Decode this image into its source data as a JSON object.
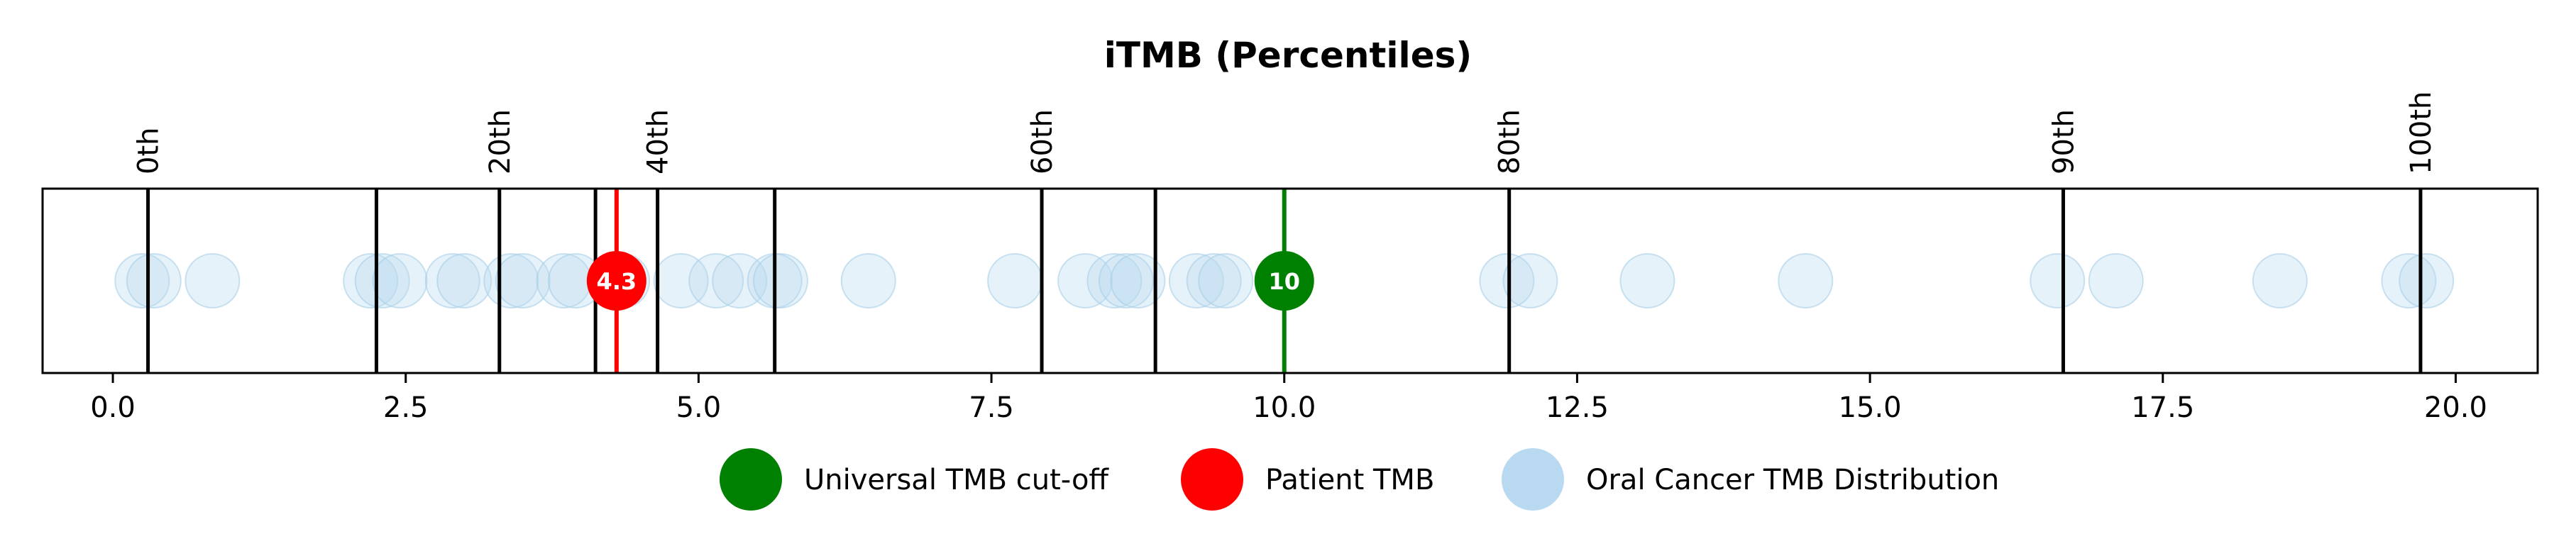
{
  "chart_data": {
    "type": "scatter",
    "title": "iTMB (Percentiles)",
    "xlabel": "",
    "ylabel": "",
    "xlim": [
      -0.6,
      20.7
    ],
    "grid": false,
    "legend_position": "bottom-center",
    "x_ticks": [
      0.0,
      2.5,
      5.0,
      7.5,
      10.0,
      12.5,
      15.0,
      17.5,
      20.0
    ],
    "x_tick_labels": [
      "0.0",
      "2.5",
      "5.0",
      "7.5",
      "10.0",
      "12.5",
      "15.0",
      "17.5",
      "20.0"
    ],
    "percentile_lines": [
      {
        "x": 0.3,
        "label": "0th"
      },
      {
        "x": 2.25,
        "label": ""
      },
      {
        "x": 3.3,
        "label": "20th"
      },
      {
        "x": 4.12,
        "label": ""
      },
      {
        "x": 4.65,
        "label": "40th"
      },
      {
        "x": 5.65,
        "label": ""
      },
      {
        "x": 7.93,
        "label": "60th"
      },
      {
        "x": 8.9,
        "label": ""
      },
      {
        "x": 11.92,
        "label": "80th"
      },
      {
        "x": 16.65,
        "label": "90th"
      },
      {
        "x": 19.7,
        "label": "100th"
      }
    ],
    "distribution": {
      "name": "Oral Cancer TMB Distribution",
      "color": "#b8d9ef",
      "values": [
        0.25,
        0.35,
        0.85,
        2.2,
        2.3,
        2.45,
        2.9,
        3.0,
        3.4,
        3.5,
        3.85,
        3.95,
        4.35,
        4.85,
        5.15,
        5.35,
        5.65,
        5.7,
        6.45,
        7.7,
        8.3,
        8.55,
        8.65,
        8.75,
        9.25,
        9.4,
        9.5,
        11.9,
        12.1,
        13.1,
        14.45,
        16.6,
        17.1,
        18.5,
        19.6,
        19.75
      ]
    },
    "patient": {
      "name": "Patient TMB",
      "value": 4.3,
      "label": "4.3",
      "color": "#ff0000"
    },
    "cutoff": {
      "name": "Universal TMB cut-off",
      "value": 10,
      "label": "10",
      "color": "#008000"
    },
    "legend": [
      {
        "label": "Universal TMB cut-off",
        "color": "#008000"
      },
      {
        "label": "Patient TMB",
        "color": "#ff0000"
      },
      {
        "label": "Oral Cancer TMB Distribution",
        "color": "#b8d9ef"
      }
    ]
  }
}
